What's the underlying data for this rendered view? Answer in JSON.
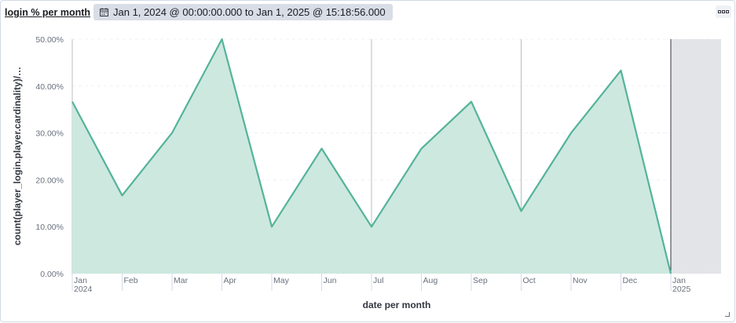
{
  "panel": {
    "title": "login % per month",
    "time_range": "Jan 1, 2024 @ 00:00:00.000 to Jan 1, 2025 @ 15:18:56.000",
    "calendar_icon": "calendar-icon",
    "menu_icon": "ellipsis-icon"
  },
  "colors": {
    "series_line": "#54b399",
    "series_fill": "#cde8df",
    "out_of_range": "#e3e4e8"
  },
  "chart_data": {
    "type": "area",
    "title": "login % per month",
    "xlabel": "date per month",
    "ylabel": "count(player_login.player.cardinality)/…",
    "ylim": [
      0,
      50
    ],
    "y_ticks": [
      "0.00%",
      "10.00%",
      "20.00%",
      "30.00%",
      "40.00%",
      "50.00%"
    ],
    "categories": [
      "Jan",
      "Feb",
      "Mar",
      "Apr",
      "May",
      "Jun",
      "Jul",
      "Aug",
      "Sep",
      "Oct",
      "Nov",
      "Dec",
      "Jan"
    ],
    "category_sublabels": [
      "2024",
      "",
      "",
      "",
      "",
      "",
      "",
      "",
      "",
      "",
      "",
      "",
      "2025"
    ],
    "series": [
      {
        "values": [
          36.67,
          16.67,
          30.0,
          50.0,
          10.0,
          26.67,
          10.0,
          26.67,
          36.67,
          13.33,
          30.0,
          43.33,
          0.0
        ]
      }
    ],
    "grid": true,
    "quarter_lines_at": [
      "Apr",
      "Jul",
      "Oct"
    ],
    "out_of_range_after": "Jan 2025"
  }
}
